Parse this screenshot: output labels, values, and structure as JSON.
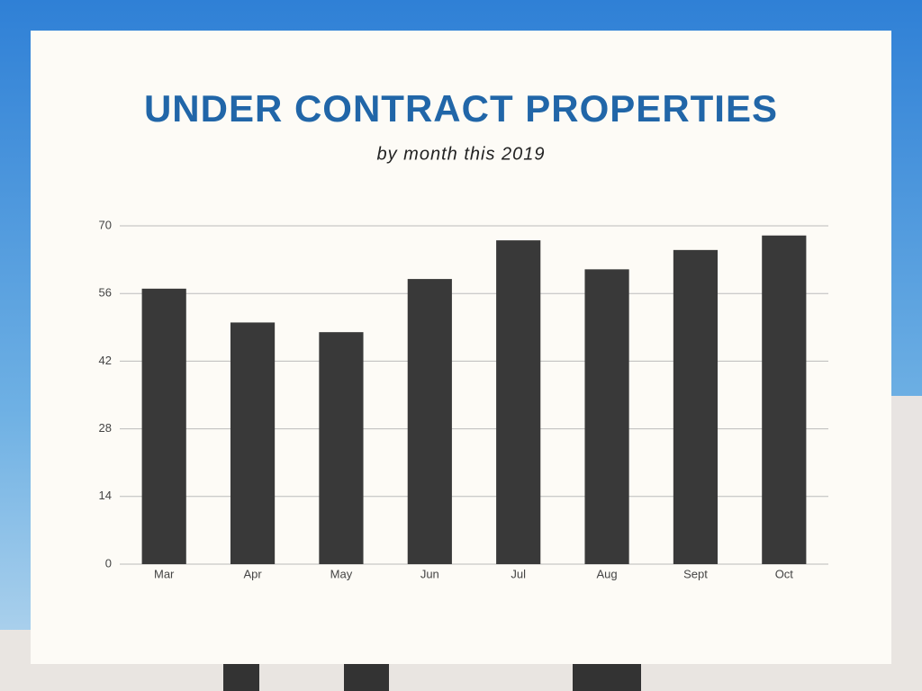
{
  "chart_data": {
    "type": "bar",
    "title": "UNDER CONTRACT PROPERTIES",
    "subtitle": "by month this 2019",
    "categories": [
      "Mar",
      "Apr",
      "May",
      "Jun",
      "Jul",
      "Aug",
      "Sept",
      "Oct"
    ],
    "values": [
      57,
      50,
      48,
      59,
      67,
      61,
      65,
      68
    ],
    "color": "#393939",
    "ylim": [
      0,
      70
    ],
    "yticks": [
      0,
      14,
      28,
      42,
      56,
      70
    ],
    "grid": true
  }
}
